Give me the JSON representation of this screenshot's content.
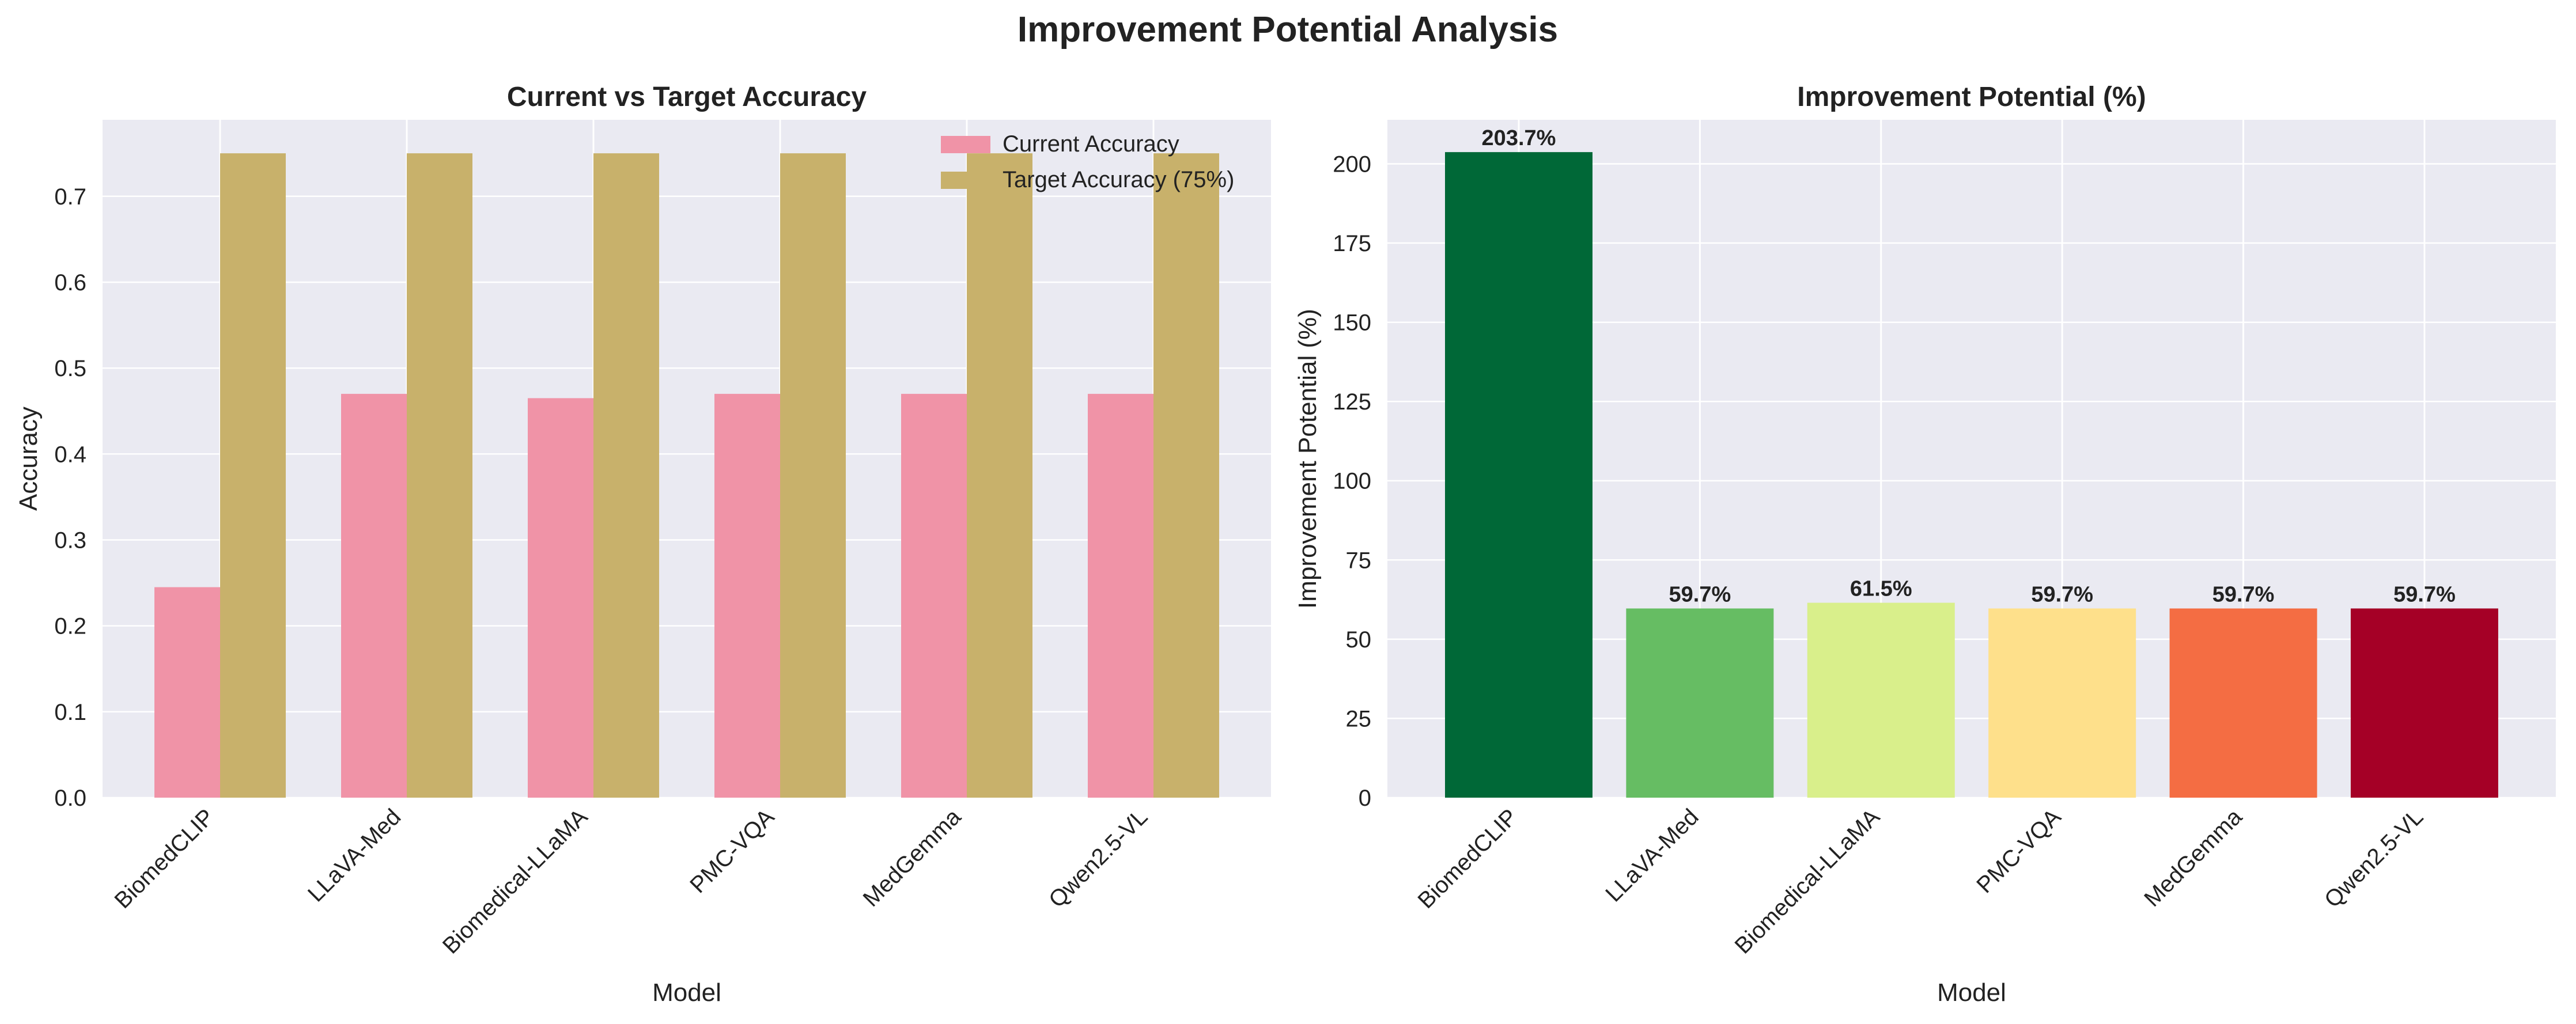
{
  "suptitle": "Improvement Potential Analysis",
  "chart_data": [
    {
      "type": "bar",
      "title": "Current vs Target Accuracy",
      "xlabel": "Model",
      "ylabel": "Accuracy",
      "categories": [
        "BiomedCLIP",
        "LLaVA-Med",
        "Biomedical-LLaMA",
        "PMC-VQA",
        "MedGemma",
        "Qwen2.5-VL"
      ],
      "series": [
        {
          "name": "Current Accuracy",
          "color": "#f093a7",
          "values": [
            0.245,
            0.47,
            0.465,
            0.47,
            0.47,
            0.47
          ]
        },
        {
          "name": "Target Accuracy (75%)",
          "color": "#c8b16b",
          "values": [
            0.75,
            0.75,
            0.75,
            0.75,
            0.75,
            0.75
          ]
        }
      ],
      "ylim": [
        0,
        0.789
      ],
      "yticks": [
        "0.0",
        "0.1",
        "0.2",
        "0.3",
        "0.4",
        "0.5",
        "0.6",
        "0.7"
      ],
      "legend": "top-right",
      "grid": true
    },
    {
      "type": "bar",
      "title": "Improvement Potential (%)",
      "xlabel": "Model",
      "ylabel": "Improvement Potential (%)",
      "categories": [
        "BiomedCLIP",
        "LLaVA-Med",
        "Biomedical-LLaMA",
        "PMC-VQA",
        "MedGemma",
        "Qwen2.5-VL"
      ],
      "values": [
        203.7,
        59.7,
        61.5,
        59.7,
        59.7,
        59.7
      ],
      "labels": [
        "203.7%",
        "59.7%",
        "61.5%",
        "59.7%",
        "59.7%",
        "59.7%"
      ],
      "colors": [
        "#006837",
        "#66bd63",
        "#d9ef8b",
        "#fee08b",
        "#f46d43",
        "#a50026"
      ],
      "ylim": [
        0,
        213.9
      ],
      "yticks": [
        "0",
        "25",
        "50",
        "75",
        "100",
        "125",
        "150",
        "175",
        "200"
      ],
      "grid": true
    }
  ]
}
